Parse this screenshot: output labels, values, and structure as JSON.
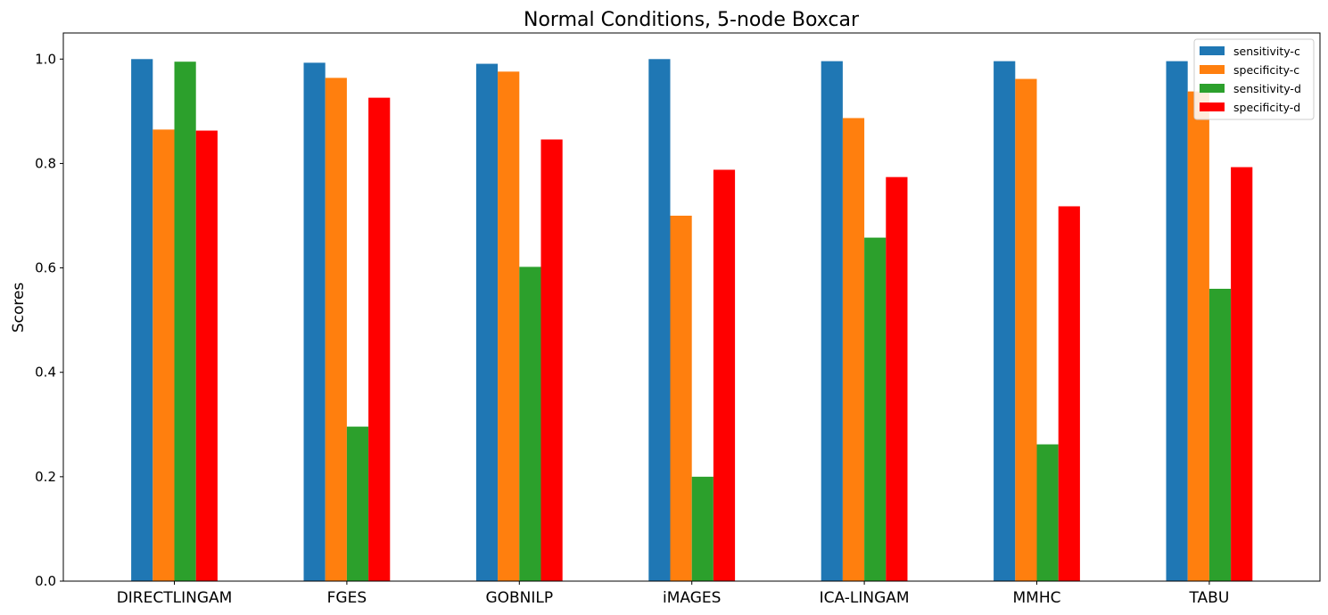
{
  "chart_data": {
    "type": "bar",
    "title": "Normal Conditions, 5-node Boxcar",
    "xlabel": "",
    "ylabel": "Scores",
    "ylim": [
      0,
      1.05
    ],
    "yticks": [
      "0.0",
      "0.2",
      "0.4",
      "0.6",
      "0.8",
      "1.0"
    ],
    "grid": false,
    "legend": "top-right",
    "categories": [
      "DIRECTLINGAM",
      "FGES",
      "GOBNILP",
      "iMAGES",
      "ICA-LINGAM",
      "MMHC",
      "TABU"
    ],
    "series": [
      {
        "name": "sensitivity-c",
        "color": "#1f77b4",
        "values": [
          1.0,
          0.993,
          0.991,
          1.0,
          0.996,
          0.996,
          0.996
        ]
      },
      {
        "name": "specificity-c",
        "color": "#ff7f0e",
        "values": [
          0.865,
          0.964,
          0.976,
          0.7,
          0.887,
          0.962,
          0.938
        ]
      },
      {
        "name": "sensitivity-d",
        "color": "#2ca02c",
        "values": [
          0.995,
          0.296,
          0.602,
          0.2,
          0.658,
          0.262,
          0.56
        ]
      },
      {
        "name": "specificity-d",
        "color": "#ff0000",
        "values": [
          0.863,
          0.926,
          0.846,
          0.788,
          0.774,
          0.718,
          0.793
        ]
      }
    ]
  }
}
